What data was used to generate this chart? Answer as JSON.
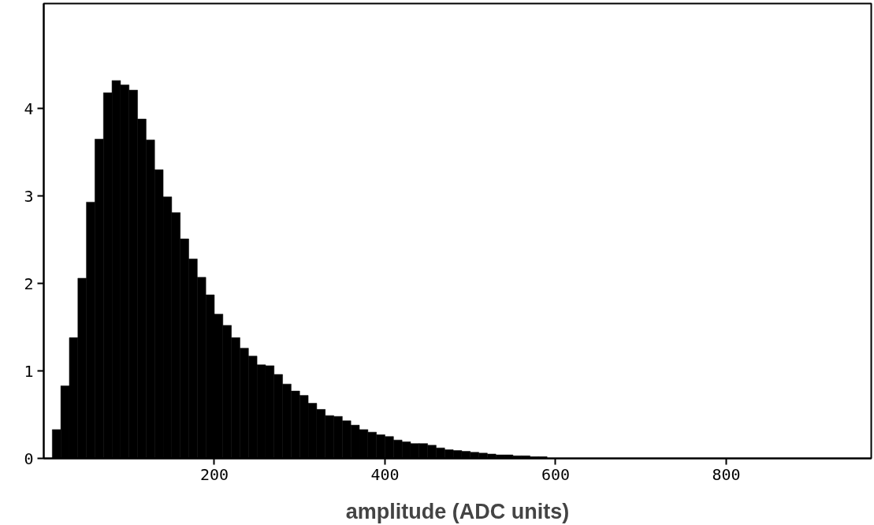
{
  "chart_data": {
    "type": "histogram",
    "xlabel": "amplitude (ADC units)",
    "color": "#000000",
    "bins": [
      10,
      20,
      30,
      40,
      50,
      60,
      70,
      80,
      90,
      100,
      110,
      120,
      130,
      140,
      150,
      160,
      170,
      180,
      190,
      200,
      210,
      220,
      230,
      240,
      250,
      260,
      270,
      280,
      290,
      300,
      310,
      320,
      330,
      340,
      350,
      360,
      370,
      380,
      390,
      400,
      410,
      420,
      430,
      440,
      450,
      460,
      470,
      480,
      490,
      500,
      510,
      520,
      530,
      540,
      550,
      560,
      570,
      580,
      590,
      600,
      610,
      620,
      630,
      640,
      650,
      660
    ],
    "values": [
      0.33,
      0.83,
      1.38,
      2.06,
      2.93,
      3.65,
      4.18,
      4.32,
      4.27,
      4.21,
      3.88,
      3.64,
      3.3,
      2.99,
      2.81,
      2.51,
      2.28,
      2.07,
      1.87,
      1.65,
      1.52,
      1.38,
      1.26,
      1.17,
      1.07,
      1.06,
      0.96,
      0.85,
      0.77,
      0.72,
      0.63,
      0.56,
      0.49,
      0.48,
      0.43,
      0.38,
      0.33,
      0.3,
      0.27,
      0.25,
      0.21,
      0.19,
      0.17,
      0.17,
      0.15,
      0.12,
      0.1,
      0.09,
      0.08,
      0.07,
      0.06,
      0.05,
      0.04,
      0.04,
      0.03,
      0.03,
      0.02,
      0.02,
      null,
      null,
      null,
      null,
      null,
      null,
      null
    ],
    "xlim": [
      0,
      970
    ],
    "ylim": [
      0,
      5.2
    ],
    "xticks": [
      200,
      400,
      600,
      800
    ],
    "yticks": [
      0,
      1,
      2,
      3,
      4
    ],
    "grid": false
  }
}
